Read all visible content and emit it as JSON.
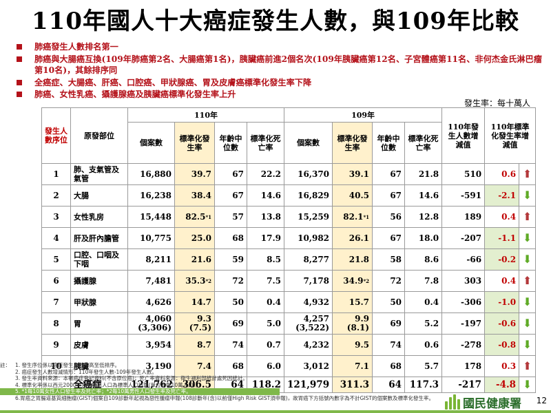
{
  "title": "110年國人十大癌症發生人數，與109年比較",
  "bullets": [
    "肺癌發生人數排名第一",
    "肺癌與大腸癌互換(109年肺癌第2名、大腸癌第1名)，胰臟癌前進2個名次(109年胰臟癌第12名、子宮體癌第11名、非何杰金氏淋巴瘤第10名)，其餘排序同",
    "全癌症、大腸癌、肝癌、口腔癌、甲狀腺癌、胃及皮膚癌標準化發生率下降",
    "肺癌、女性乳癌、攝護腺癌及胰臟癌標準化發生率上升"
  ],
  "unit_label": "發生率：每十萬人",
  "table": {
    "headers": {
      "rank": "發生人數序位",
      "site": "原發部位",
      "year110": "110年",
      "year109": "109年",
      "cases": "個案數",
      "std_rate": "標準化發生率",
      "median_age": "年齡中位數",
      "std_death": "標準化死亡率",
      "diff_cases": "110年發生人數增減值",
      "diff_rate": "110年標準化發生率增減值"
    },
    "rows": [
      {
        "rank": "1",
        "site": "肺、支氣管及氣管",
        "c110": "16,880",
        "r110": "39.7",
        "a110": "67",
        "d110": "22.2",
        "c109": "16,370",
        "r109": "39.1",
        "a109": "67",
        "d109": "21.8",
        "dc": "510",
        "dr": "0.6",
        "dir": "up"
      },
      {
        "rank": "2",
        "site": "大腸",
        "c110": "16,238",
        "r110": "38.4",
        "a110": "67",
        "d110": "14.6",
        "c109": "16,829",
        "r109": "40.5",
        "a109": "67",
        "d109": "14.6",
        "dc": "-591",
        "dr": "-2.1",
        "dir": "down"
      },
      {
        "rank": "3",
        "site": "女性乳房",
        "c110": "15,448",
        "r110": "82.5",
        "r110sup": "*1",
        "a110": "57",
        "d110": "13.8",
        "c109": "15,259",
        "r109": "82.1",
        "r109sup": "*1",
        "a109": "56",
        "d109": "12.8",
        "dc": "189",
        "dr": "0.4",
        "dir": "up"
      },
      {
        "rank": "4",
        "site": "肝及肝內膽管",
        "c110": "10,775",
        "r110": "25.0",
        "a110": "68",
        "d110": "17.9",
        "c109": "10,982",
        "r109": "26.1",
        "a109": "67",
        "d109": "18.0",
        "dc": "-207",
        "dr": "-1.1",
        "dir": "down"
      },
      {
        "rank": "5",
        "site": "口腔、口咽及下咽",
        "c110": "8,211",
        "r110": "21.6",
        "a110": "59",
        "d110": "8.5",
        "c109": "8,277",
        "r109": "21.8",
        "a109": "58",
        "d109": "8.6",
        "dc": "-66",
        "dr": "-0.2",
        "dir": "down"
      },
      {
        "rank": "6",
        "site": "攝護腺",
        "c110": "7,481",
        "r110": "35.3",
        "r110sup": "*2",
        "a110": "72",
        "d110": "7.5",
        "c109": "7,178",
        "r109": "34.9",
        "r109sup": "*2",
        "a109": "72",
        "d109": "7.8",
        "dc": "303",
        "dr": "0.4",
        "dir": "up"
      },
      {
        "rank": "7",
        "site": "甲狀腺",
        "c110": "4,626",
        "r110": "14.7",
        "a110": "50",
        "d110": "0.4",
        "c109": "4,932",
        "r109": "15.7",
        "a109": "50",
        "d109": "0.4",
        "dc": "-306",
        "dr": "-1.0",
        "dir": "down"
      },
      {
        "rank": "8",
        "site": "胃",
        "c110": "4,060",
        "c110b": "(3,306)",
        "r110": "9.3",
        "r110b": "(7.5)",
        "a110": "69",
        "d110": "5.0",
        "c109": "4,257",
        "c109b": "(3,522)",
        "r109": "9.9",
        "r109b": "(8.1)",
        "a109": "69",
        "d109": "5.2",
        "dc": "-197",
        "dr": "-0.6",
        "dir": "down"
      },
      {
        "rank": "9",
        "site": "皮膚",
        "c110": "3,954",
        "r110": "8.7",
        "a110": "74",
        "d110": "0.7",
        "c109": "4,232",
        "r109": "9.5",
        "a109": "74",
        "d109": "0.6",
        "dc": "-278",
        "dr": "-0.8",
        "dir": "down"
      },
      {
        "rank": "10",
        "site": "胰臟",
        "c110": "3,190",
        "r110": "7.4",
        "a110": "68",
        "d110": "6.0",
        "c109": "3,012",
        "r109": "7.1",
        "a109": "68",
        "d109": "5.7",
        "dc": "178",
        "dr": "0.3",
        "dir": "up"
      },
      {
        "rank": "",
        "site": "全癌症",
        "c110": "121,762",
        "r110": "306.5",
        "a110": "64",
        "d110": "118.2",
        "c109": "121,979",
        "r109": "311.3",
        "a109": "64",
        "d109": "117.3",
        "dc": "-217",
        "dr": "-4.8",
        "dir": "down"
      }
    ]
  },
  "notes_label": "註：",
  "notes": [
    "1. 發生序位係以癌症發生人數由高至低排序。",
    "2. 癌症發生人數增減情形：110年發生人數-109年發生人數。",
    "3. 發生率資料來源：本署癌症登記資料(不含原位癌)；死亡率資料來源：衛生福利部統計處死因統計。",
    "4. 標準化率係以西元2000年世界標準人口為標準人口計算(單位為每10萬人口)。",
    "5. *1每10萬女性人口發生率及死亡率；*2每10萬男性人口發生率及死亡率。",
    "6.胃癌之胃腸道基質細胞瘤(GIST)個案自109診斷年起視為惡性腫瘤申報(108診斷年(含)以前僅High Risk GIST須申報)，故胃癌下方括號內數字為不計GIST的個案數及標準化發生率。"
  ],
  "brand": "國民健康署",
  "page_number": "12",
  "colors": {
    "accent_red": "#b4121a",
    "highlight": "#fff1cc",
    "green_cell": "#e3efcf",
    "arrow_up": "#b3383a",
    "arrow_down": "#5faa26",
    "brand_green": "#7fb84a"
  }
}
